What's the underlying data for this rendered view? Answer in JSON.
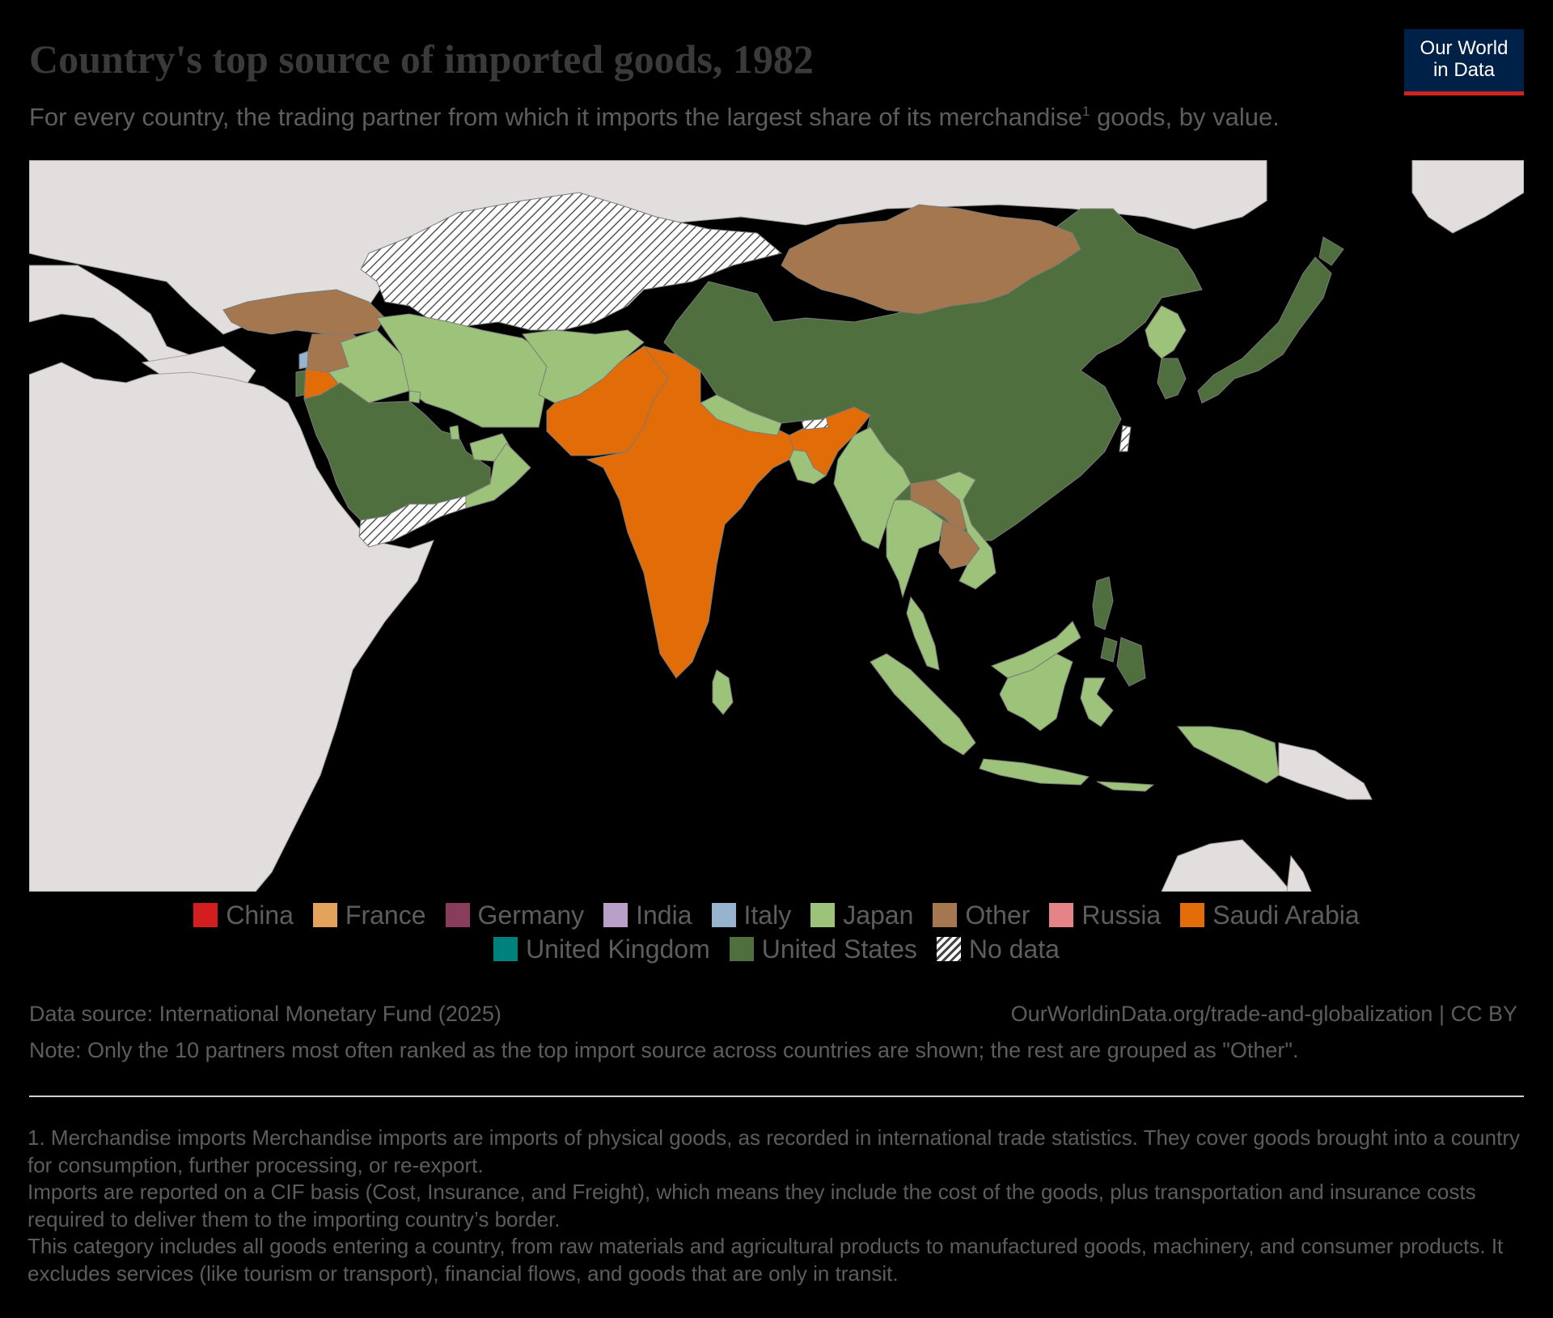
{
  "header": {
    "title": "Country's top source of imported goods, 1982",
    "subtitle": "For every country, the trading partner from which it imports the largest share of its merchandise",
    "subtitle_sup": "1",
    "subtitle_end": " goods, by value."
  },
  "logo": {
    "line1": "Our World",
    "line2": "in Data"
  },
  "colors": {
    "China": "#d21e1e",
    "France": "#e3a35c",
    "Germany": "#883d5d",
    "India": "#b9a0c8",
    "Italy": "#96b4cf",
    "Japan": "#9dc37a",
    "Other": "#a5774e",
    "Russia": "#e48488",
    "Saudi Arabia": "#e26d08",
    "United Kingdom": "#00817e",
    "United States": "#4f6f3f",
    "No data": "hatch",
    "background_land": "#e3dede"
  },
  "legend": {
    "row1": [
      {
        "label": "China",
        "color": "#d21e1e"
      },
      {
        "label": "France",
        "color": "#e3a35c"
      },
      {
        "label": "Germany",
        "color": "#883d5d"
      },
      {
        "label": "India",
        "color": "#b9a0c8"
      },
      {
        "label": "Italy",
        "color": "#96b4cf"
      },
      {
        "label": "Japan",
        "color": "#9dc37a"
      },
      {
        "label": "Other",
        "color": "#a5774e"
      },
      {
        "label": "Russia",
        "color": "#e48488"
      },
      {
        "label": "Saudi Arabia",
        "color": "#e26d08"
      }
    ],
    "row2": [
      {
        "label": "United Kingdom",
        "color": "#00817e"
      },
      {
        "label": "United States",
        "color": "#4f6f3f"
      },
      {
        "label": "No data",
        "color": "hatch"
      }
    ]
  },
  "map_data": {
    "region": "Asia",
    "year": 1982,
    "top_import_source": {
      "China": "United States",
      "Japan": "United States",
      "South Korea": "United States",
      "North Korea": "Japan",
      "Mongolia": "Other",
      "India": "Saudi Arabia",
      "Pakistan": "Saudi Arabia",
      "Bangladesh": "Japan",
      "Nepal": "Japan",
      "Bhutan": "No data",
      "Sri Lanka": "Japan",
      "Myanmar": "Japan",
      "Thailand": "Japan",
      "Laos": "Other",
      "Cambodia": "Other",
      "Vietnam": "Japan",
      "Malaysia": "Japan",
      "Indonesia": "Japan",
      "Philippines": "United States",
      "Taiwan": "No data",
      "Papua New Guinea": "Japan",
      "Afghanistan": "Japan",
      "Iran": "Japan",
      "Iraq": "Japan",
      "Saudi Arabia": "United States",
      "Yemen": "No data",
      "Oman": "Japan",
      "United Arab Emirates": "Japan",
      "Qatar": "Japan",
      "Kuwait": "Japan",
      "Jordan": "Saudi Arabia",
      "Syria": "Other",
      "Turkey": "Other",
      "Lebanon": "Italy",
      "Israel": "United States",
      "Soviet Union": "No data"
    }
  },
  "footer": {
    "source": "Data source: International Monetary Fund (2025)",
    "url": "OurWorldinData.org/trade-and-globalization | CC BY",
    "note": "Note: Only the 10 partners most often ranked as the top import source across countries are shown; the rest are grouped as \"Other\".",
    "footnotes": [
      "1. Merchandise imports Merchandise imports are imports of physical goods, as recorded in international trade statistics. They cover goods brought into a country for consumption, further processing, or re-export.",
      "Imports are reported on a CIF basis (Cost, Insurance, and Freight), which means they include the cost of the goods, plus transportation and insurance costs required to deliver them to the importing country’s border.",
      "This category includes all goods entering a country, from raw materials and agricultural products to manufactured goods, machinery, and consumer products. It excludes services (like tourism or transport), financial flows, and goods that are only in transit."
    ]
  }
}
